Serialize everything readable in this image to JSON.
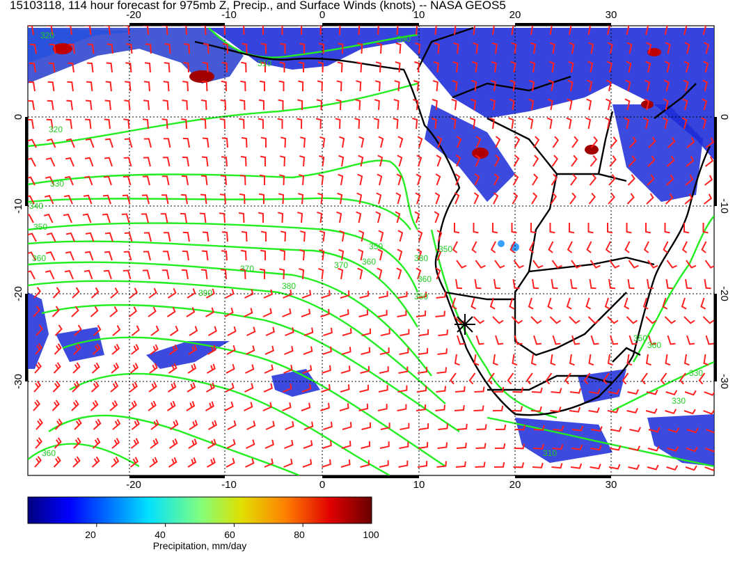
{
  "title": "15103118, 114 hour forecast for 975mb Z, Precip., and Surface Winds (knots) -- NASA GEOS5",
  "map": {
    "lon_ticks": [
      "-20",
      "-10",
      "0",
      "10",
      "20",
      "30"
    ],
    "lat_ticks": [
      "0",
      "-10",
      "-20",
      "-30"
    ],
    "contour_labels": [
      "320",
      "320",
      "330",
      "340",
      "350",
      "360",
      "370",
      "380",
      "390",
      "350",
      "350",
      "360",
      "370",
      "380",
      "360",
      "350",
      "330",
      "310",
      "390",
      "360",
      "350",
      "310",
      "360",
      "330"
    ],
    "colors": {
      "wind_barbs": "#ff2020",
      "contours": "#22ee22",
      "coastline": "#000000",
      "grid": "#000000"
    }
  },
  "colorbar": {
    "ticks": [
      "20",
      "40",
      "60",
      "80",
      "100"
    ],
    "label": "Precipitation, mm/day",
    "range": [
      0,
      100
    ],
    "colormap": [
      "#00007f",
      "#0000ff",
      "#007fff",
      "#00ffff",
      "#7fff7f",
      "#ffff00",
      "#ff7f00",
      "#ff0000",
      "#7f0000"
    ]
  }
}
